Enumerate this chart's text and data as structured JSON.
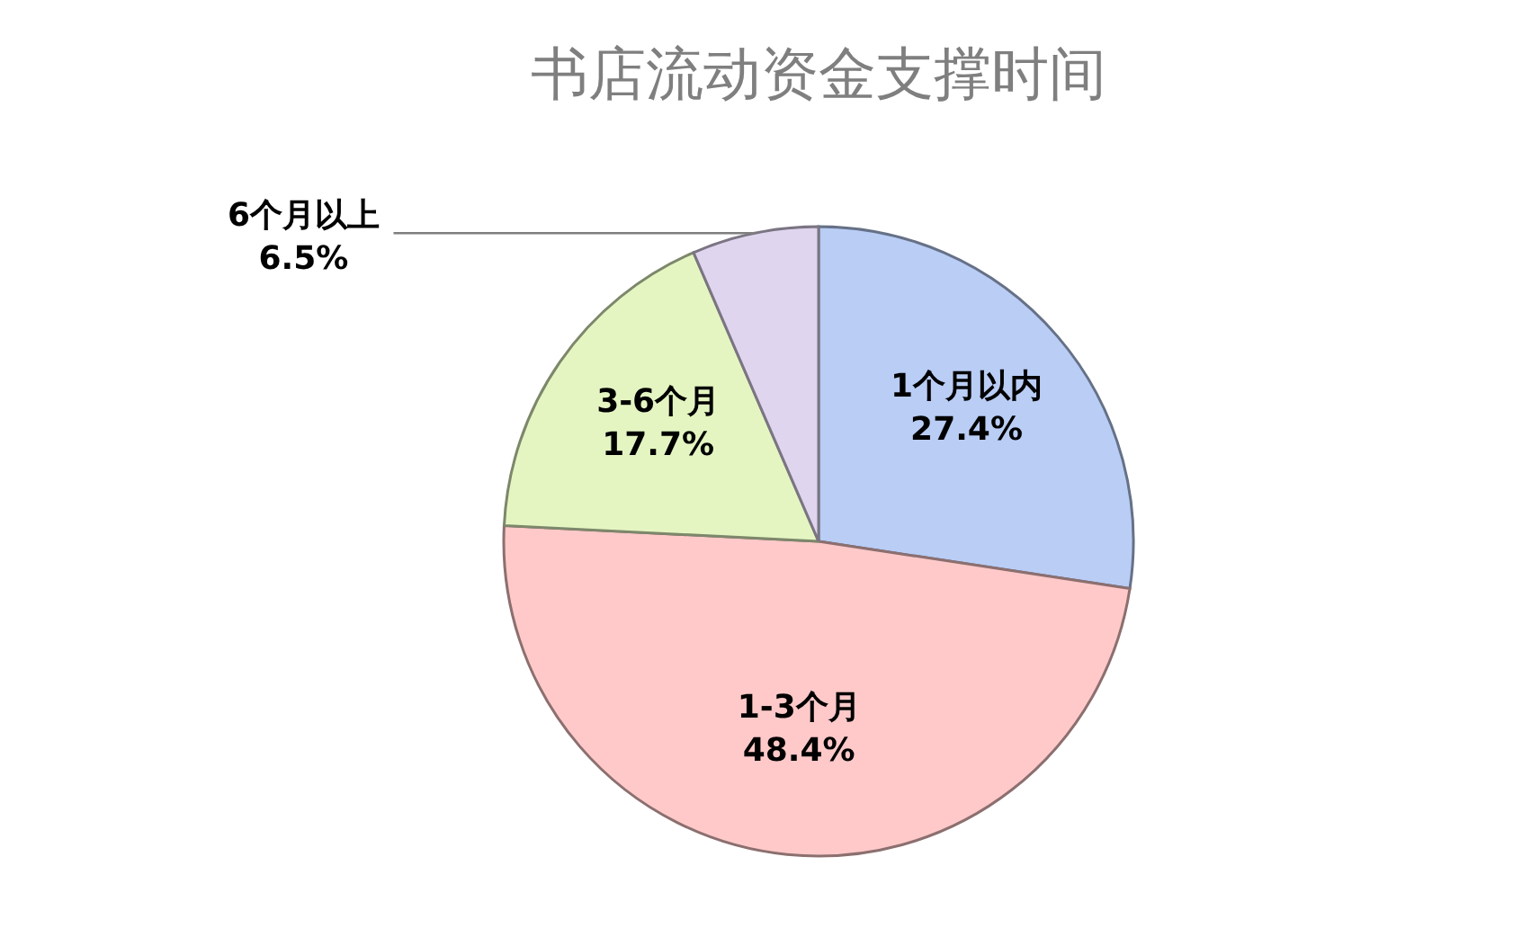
{
  "chart_data": {
    "type": "pie",
    "title": "书店流动资金支撑时间",
    "categories": [
      "1个月以内",
      "1-3个月",
      "3-6个月",
      "6个月以上"
    ],
    "values": [
      27.4,
      48.4,
      17.7,
      6.5
    ],
    "colors": [
      "#b9cdf5",
      "#ffc9c9",
      "#e4f5c2",
      "#e0d5ee"
    ],
    "value_labels": [
      "27.4%",
      "48.4%",
      "17.7%",
      "6.5%"
    ]
  }
}
